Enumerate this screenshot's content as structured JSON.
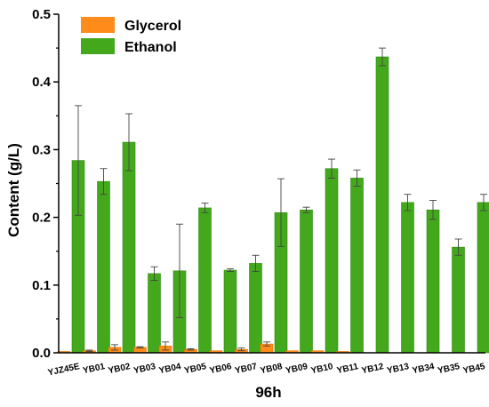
{
  "chart_data": {
    "type": "bar",
    "xlabel": "96h",
    "ylabel": "Content (g/L)",
    "ylim": [
      0,
      0.5
    ],
    "yticks": [
      "0.0",
      "0.1",
      "0.2",
      "0.3",
      "0.4",
      "0.5"
    ],
    "categories": [
      "YJZ45E",
      "YB01",
      "YB02",
      "YB03",
      "YB04",
      "YB05",
      "YB06",
      "YB07",
      "YB08",
      "YB09",
      "YB10",
      "YB11",
      "YB12",
      "YB13",
      "YB34",
      "YB35",
      "YB45"
    ],
    "series": [
      {
        "name": "Glycerol",
        "color": "#ff8c1a",
        "values": [
          0.002,
          0.003,
          0.008,
          0.008,
          0.01,
          0.005,
          0.003,
          0.005,
          0.013,
          0.003,
          0.003,
          0.002,
          0.0,
          0.0,
          0.0,
          0.0,
          0.0
        ],
        "errors": [
          0.0,
          0.001,
          0.004,
          0.001,
          0.006,
          0.001,
          0.0,
          0.002,
          0.003,
          0.0,
          0.0,
          0.0,
          0.0,
          0.0,
          0.0,
          0.0,
          0.0
        ]
      },
      {
        "name": "Ethanol",
        "color": "#44a81c",
        "values": [
          0.284,
          0.253,
          0.311,
          0.117,
          0.121,
          0.214,
          0.122,
          0.132,
          0.207,
          0.211,
          0.272,
          0.258,
          0.437,
          0.222,
          0.211,
          0.156,
          0.222
        ],
        "errors": [
          0.081,
          0.019,
          0.042,
          0.01,
          0.069,
          0.007,
          0.002,
          0.012,
          0.05,
          0.004,
          0.014,
          0.012,
          0.013,
          0.012,
          0.014,
          0.012,
          0.012
        ]
      }
    ],
    "legend": "top-left",
    "grid": false
  }
}
